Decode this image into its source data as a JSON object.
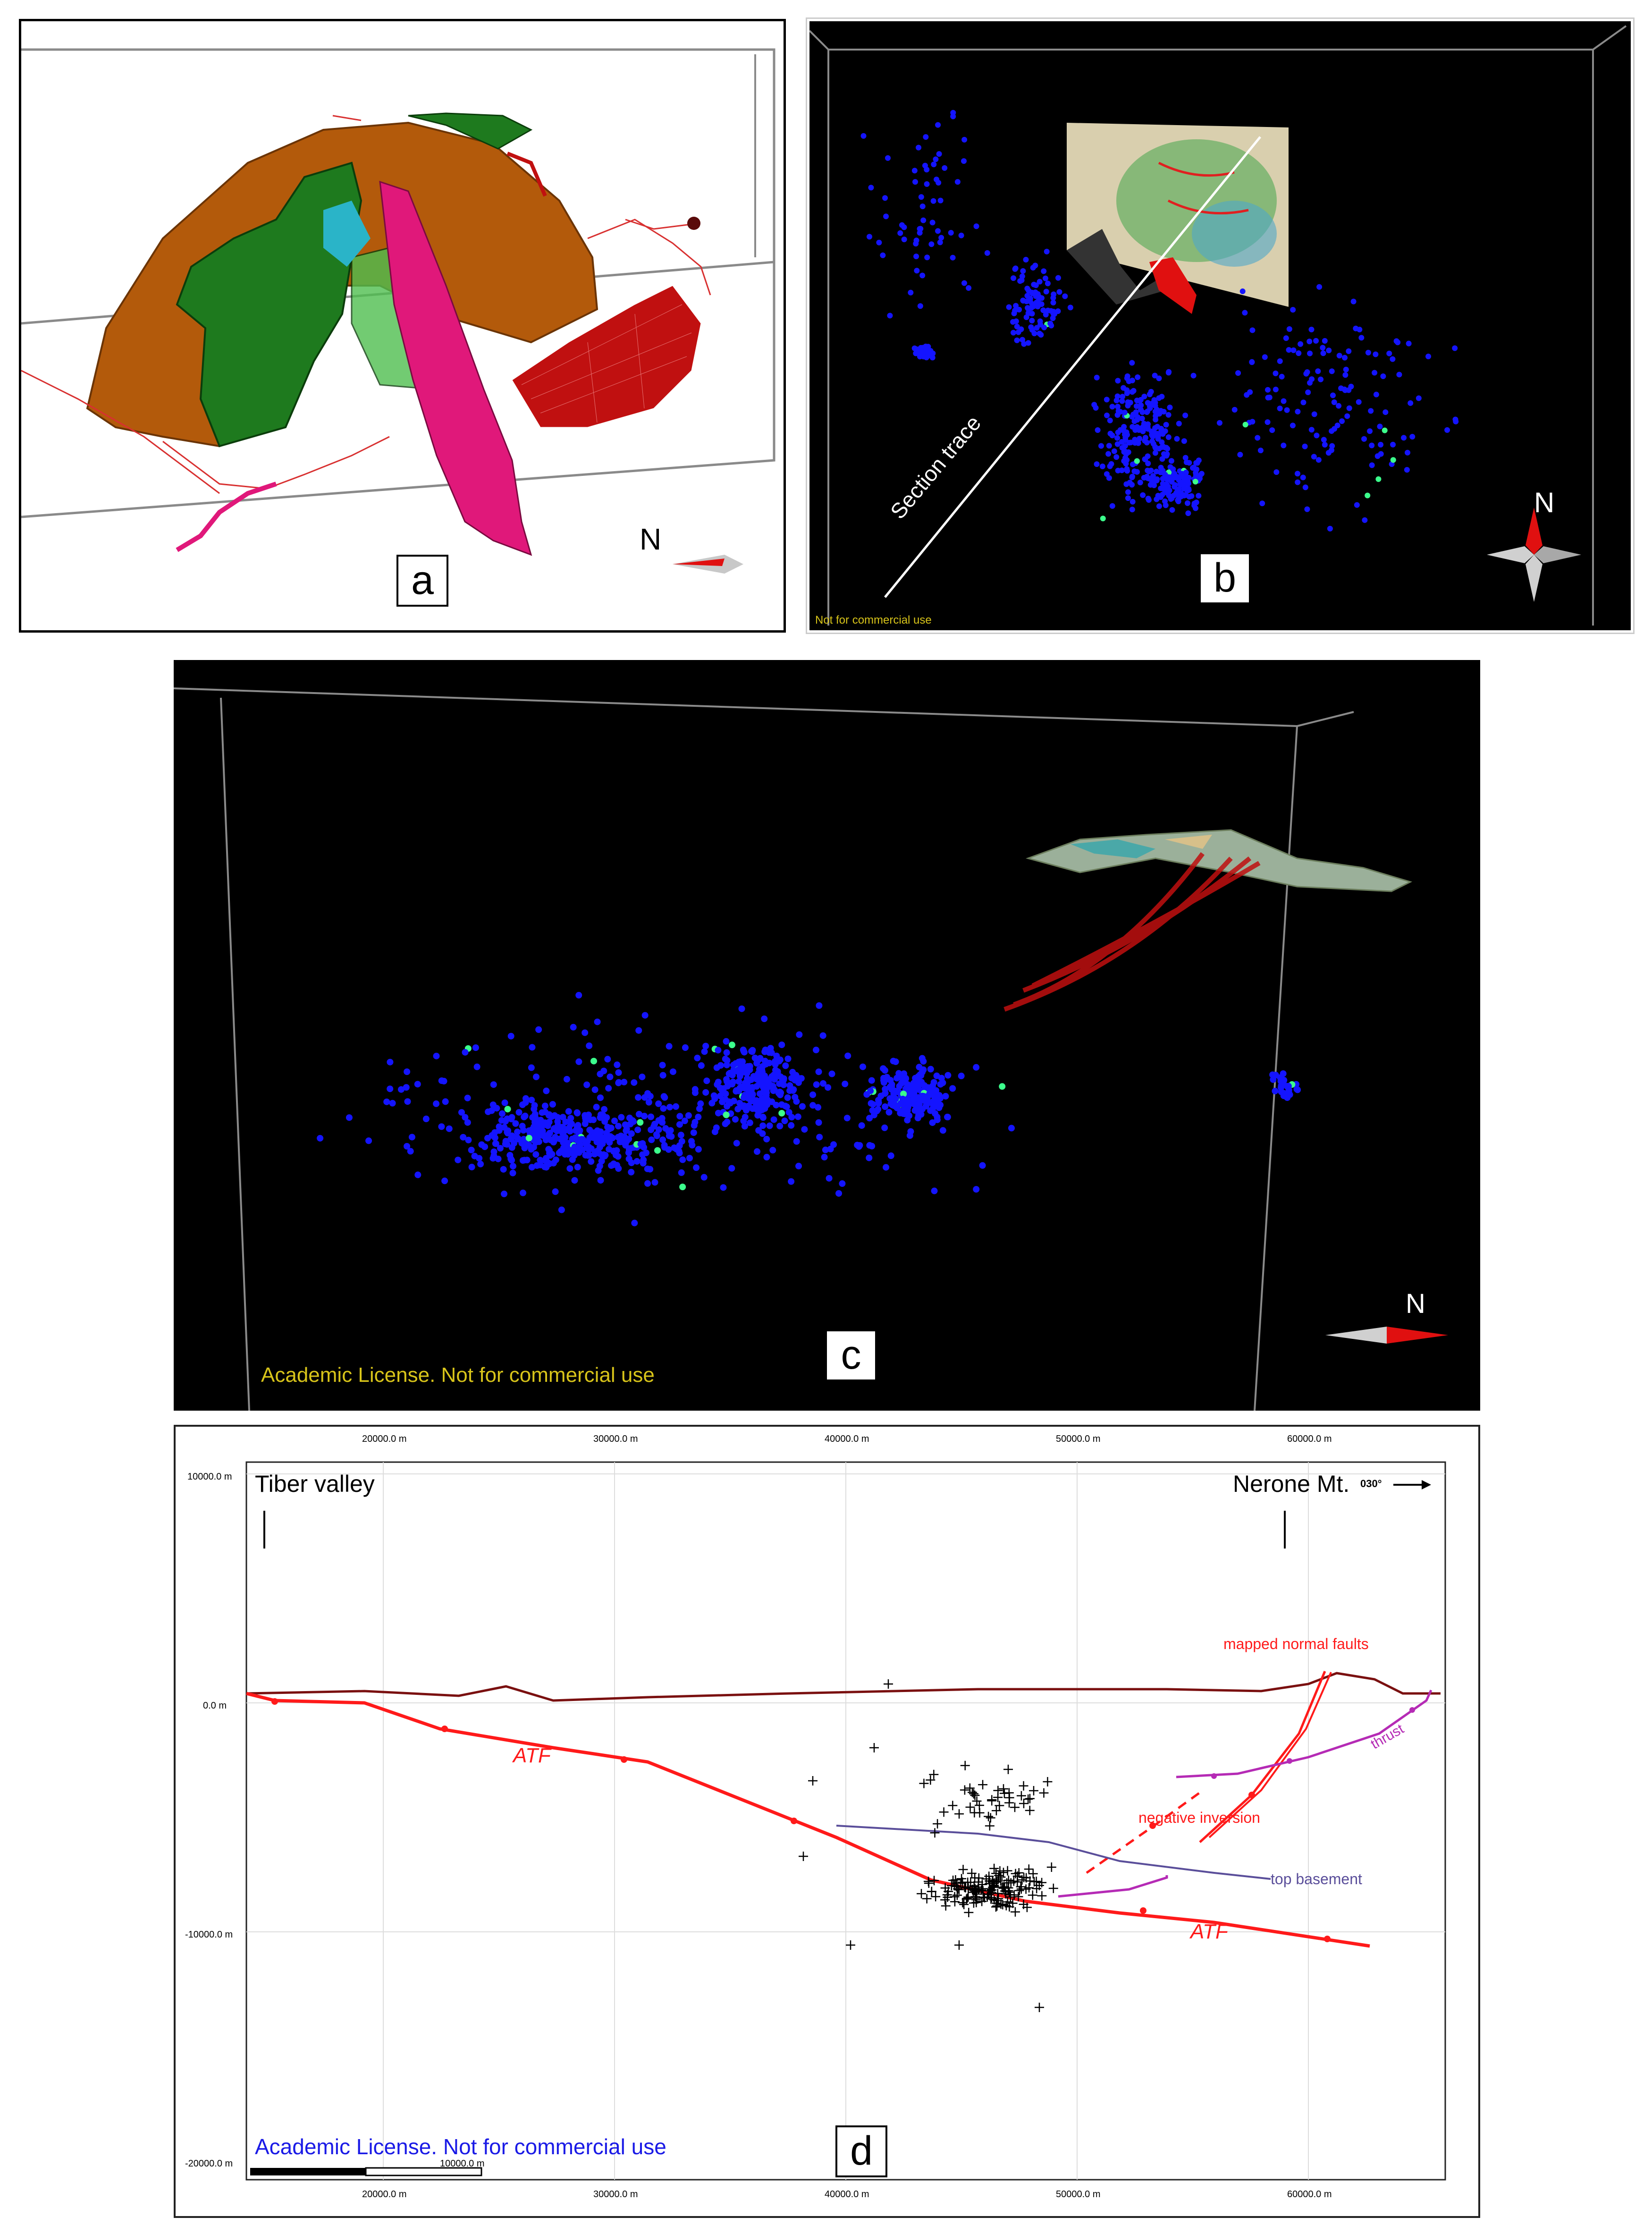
{
  "panels": {
    "a": {
      "letter": "a",
      "north": "N"
    },
    "b": {
      "letter": "b",
      "north": "N",
      "section_label": "Section trace",
      "license": "Not for commercial use"
    },
    "c": {
      "letter": "c",
      "north": "N",
      "license": "Academic License. Not for commercial use"
    },
    "d": {
      "letter": "d",
      "license": "Academic License. Not for commercial use",
      "left_place": "Tiber valley",
      "right_place": "Nerone Mt.",
      "azimuth": "030°",
      "scale_bar": "10000.0 m",
      "labels": {
        "mapped_normal_faults": "mapped normal faults",
        "thrust": "thrust",
        "negative_inversion": "negative inversion",
        "top_basement": "top basement",
        "atf_upper": "ATF",
        "atf_lower": "ATF"
      },
      "x_ticks": [
        "20000.0 m",
        "30000.0 m",
        "40000.0 m",
        "50000.0 m",
        "60000.0 m"
      ],
      "y_ticks": [
        "10000.0 m",
        "0.0 m",
        "-10000.0 m",
        "-20000.0 m"
      ]
    }
  },
  "colors": {
    "fault_red": "#ff1a1a",
    "topography": "#7a1010",
    "thrust_magenta": "#b52bb5",
    "basement": "#5a4e9a",
    "events_blue": "#1414ff",
    "license_yellow": "#d8c41a",
    "license_blue": "#1a1ae6"
  }
}
